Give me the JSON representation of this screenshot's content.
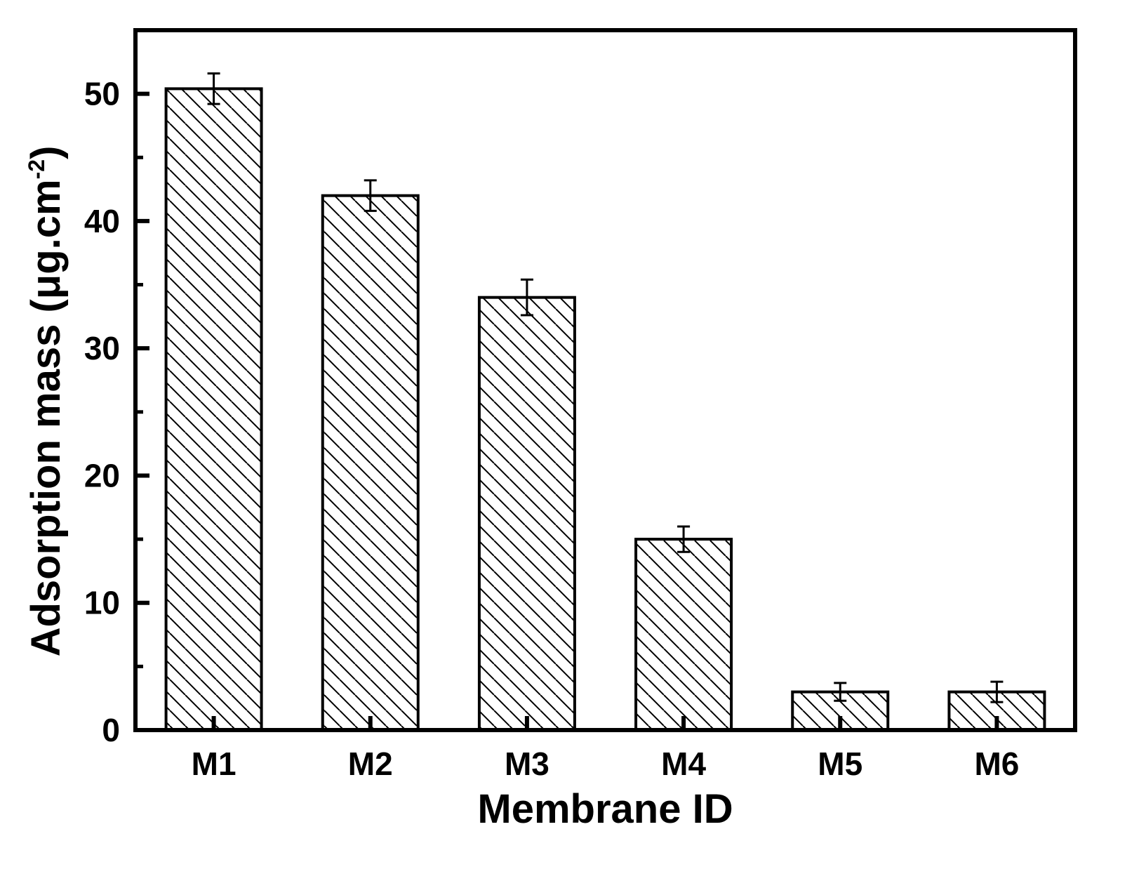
{
  "chart_data": {
    "type": "bar",
    "categories": [
      "M1",
      "M2",
      "M3",
      "M4",
      "M5",
      "M6"
    ],
    "values": [
      50.4,
      42.0,
      34.0,
      15.0,
      3.0,
      3.0
    ],
    "errors": [
      1.2,
      1.2,
      1.4,
      1.0,
      0.7,
      0.8
    ],
    "xlabel": "Membrane ID",
    "ylabel": "Adsorption mass (μg.cm",
    "ylabel_superscript": "-2",
    "ylabel_close": ")",
    "ylim": [
      0,
      55
    ],
    "yticks": [
      0,
      10,
      20,
      30,
      40,
      50
    ],
    "bar_fill": "hatched",
    "bar_color": "#000000",
    "grid": false
  }
}
